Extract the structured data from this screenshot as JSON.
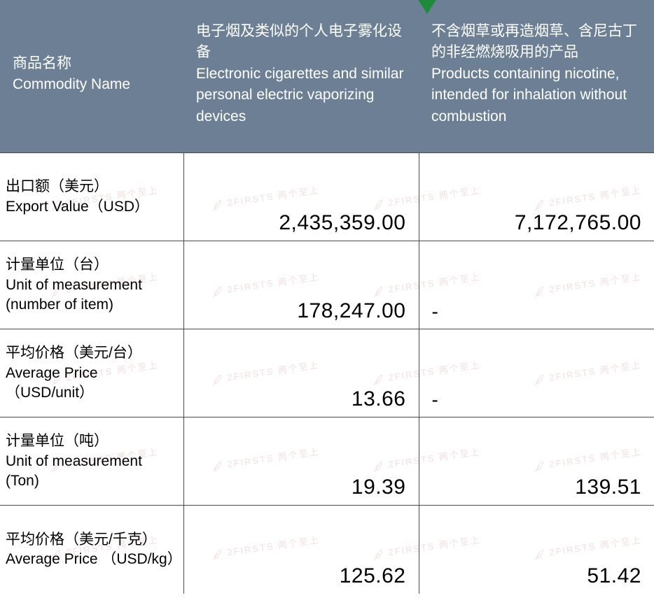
{
  "header": {
    "label_cn": "商品名称",
    "label_en": "Commodity Name",
    "colA_cn": "电子烟及类似的个人电子雾化设备",
    "colA_en": "Electronic cigarettes and similar personal electric vaporizing devices",
    "colB_cn": "不含烟草或再造烟草、含尼古丁的非经燃烧吸用的产品",
    "colB_en": "Products containing nicotine, intended for inhalation without combustion"
  },
  "rows": [
    {
      "label_cn": "出口额（美元）",
      "label_en": " Export Value（USD）",
      "valA": "2,435,359.00",
      "valB": "7,172,765.00",
      "dashB": false
    },
    {
      "label_cn": "计量单位（台）",
      "label_en": "Unit of measurement (number of item)",
      "valA": "178,247.00",
      "valB": "-",
      "dashB": true
    },
    {
      "label_cn": "平均价格（美元/台）",
      "label_en": "Average Price （USD/unit）",
      "valA": "13.66",
      "valB": "-",
      "dashB": true
    },
    {
      "label_cn": "计量单位（吨）",
      "label_en": "Unit of measurement (Ton)",
      "valA": "19.39",
      "valB": "139.51",
      "dashB": false
    },
    {
      "label_cn": "平均价格（美元/千克）",
      "label_en": "Average Price （USD/kg）",
      "valA": "125.62",
      "valB": "51.42",
      "dashB": false
    }
  ],
  "watermark_text": "2FIRSTS 两个至上",
  "style": {
    "header_bg": "#6d7f94",
    "header_fg": "#ffffff",
    "border_color": "#4a4a4a",
    "text_color": "#000000",
    "wm_color": "#d9a6a6",
    "triangle_color": "#1f8a3b",
    "header_fontsize": 21,
    "label_fontsize": 21,
    "value_fontsize": 30
  }
}
